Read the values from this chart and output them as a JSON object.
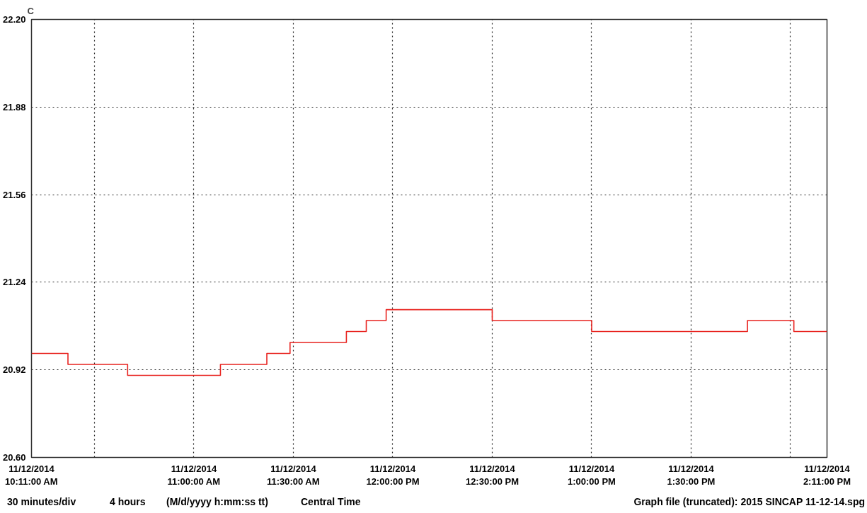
{
  "chart_data": {
    "type": "step",
    "ylabel": "C",
    "x": [
      "2014-11-12T10:11",
      "2014-11-12T10:22",
      "2014-11-12T10:40",
      "2014-11-12T11:08",
      "2014-11-12T11:22",
      "2014-11-12T11:29",
      "2014-11-12T11:46",
      "2014-11-12T11:52",
      "2014-11-12T11:58",
      "2014-11-12T12:30",
      "2014-11-12T13:00",
      "2014-11-12T13:47",
      "2014-11-12T14:01",
      "2014-11-12T14:11"
    ],
    "series": [
      {
        "color": "#e8231f",
        "values": [
          20.98,
          20.94,
          20.9,
          20.94,
          20.98,
          21.02,
          21.06,
          21.1,
          21.14,
          21.1,
          21.06,
          21.1,
          21.06,
          21.06
        ]
      }
    ],
    "xlim": [
      "2014-11-12T10:11",
      "2014-11-12T14:11"
    ],
    "xticks": [
      {
        "value": "2014-11-12T10:11",
        "label": "11/12/2014\n10:11:00 AM"
      },
      {
        "value": "2014-11-12T10:30",
        "label": null
      },
      {
        "value": "2014-11-12T11:00",
        "label": "11/12/2014\n11:00:00 AM"
      },
      {
        "value": "2014-11-12T11:30",
        "label": "11/12/2014\n11:30:00 AM"
      },
      {
        "value": "2014-11-12T12:00",
        "label": "11/12/2014\n12:00:00 PM"
      },
      {
        "value": "2014-11-12T12:30",
        "label": "11/12/2014\n12:30:00 PM"
      },
      {
        "value": "2014-11-12T13:00",
        "label": "11/12/2014\n1:00:00 PM"
      },
      {
        "value": "2014-11-12T13:30",
        "label": "11/12/2014\n1:30:00 PM"
      },
      {
        "value": "2014-11-12T14:00",
        "label": null
      },
      {
        "value": "2014-11-12T14:11",
        "label": "11/12/2014\n2:11:00 PM"
      }
    ],
    "ylim": [
      20.6,
      22.2
    ],
    "yticks": [
      {
        "value": 20.6,
        "label": "20.60"
      },
      {
        "value": 20.92,
        "label": "20.92"
      },
      {
        "value": 21.24,
        "label": "21.24"
      },
      {
        "value": 21.56,
        "label": "21.56"
      },
      {
        "value": 21.88,
        "label": "21.88"
      },
      {
        "value": 22.2,
        "label": "22.20"
      }
    ],
    "grid": true,
    "line_style": "solid",
    "annotations": [
      "30 minutes/div",
      "4 hours",
      "(M/d/yyyy h:mm:ss tt)",
      "Central Time",
      "Graph file (truncated): 2015 SINCAP 11-12-14.spg"
    ]
  }
}
